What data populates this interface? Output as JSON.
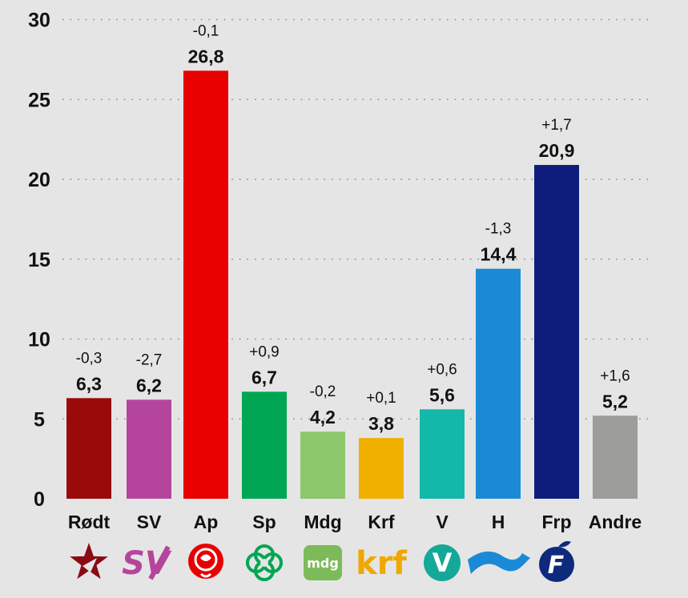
{
  "chart_data": {
    "type": "bar",
    "categories": [
      "Rødt",
      "SV",
      "Ap",
      "Sp",
      "Mdg",
      "Krf",
      "V",
      "H",
      "Frp",
      "Andre"
    ],
    "values": [
      6.3,
      6.2,
      26.8,
      6.7,
      4.2,
      3.8,
      5.6,
      14.4,
      20.9,
      5.2
    ],
    "value_labels": [
      "6,3",
      "6,2",
      "26,8",
      "6,7",
      "4,2",
      "3,8",
      "5,6",
      "14,4",
      "20,9",
      "5,2"
    ],
    "changes": [
      "-0,3",
      "-2,7",
      "-0,1",
      "+0,9",
      "-0,2",
      "+0,1",
      "+0,6",
      "-1,3",
      "+1,7",
      "+1,6"
    ],
    "colors": [
      "#9b0a0a",
      "#b5459c",
      "#e80000",
      "#00a651",
      "#8dc76b",
      "#f0b000",
      "#14b8aa",
      "#1a8ad6",
      "#0e1d7c",
      "#9c9c98"
    ],
    "yticks": [
      "0",
      "5",
      "10",
      "15",
      "20",
      "25",
      "30"
    ],
    "ylim": [
      0,
      30
    ],
    "grid": true,
    "title": "",
    "xlabel": "",
    "ylabel": ""
  },
  "logos": [
    {
      "party": "Rødt",
      "icon": "star-icon",
      "color": "#8a0b14"
    },
    {
      "party": "SV",
      "icon": "sv-logo-icon",
      "color": "#b5459c",
      "text": "SV"
    },
    {
      "party": "Ap",
      "icon": "rose-icon",
      "color": "#e80000"
    },
    {
      "party": "Sp",
      "icon": "clover-icon",
      "color": "#00a651"
    },
    {
      "party": "Mdg",
      "icon": "mdg-logo-icon",
      "color": "#7dbb5a",
      "text": "mdg"
    },
    {
      "party": "Krf",
      "icon": "krf-logo-icon",
      "color": "#f0a800",
      "text": "krf"
    },
    {
      "party": "V",
      "icon": "v-logo-icon",
      "color": "#14a898",
      "text": "V"
    },
    {
      "party": "H",
      "icon": "wave-flag-icon",
      "color": "#1a8ad6"
    },
    {
      "party": "Frp",
      "icon": "frp-logo-icon",
      "color": "#0e2a7c",
      "text": "F"
    }
  ]
}
